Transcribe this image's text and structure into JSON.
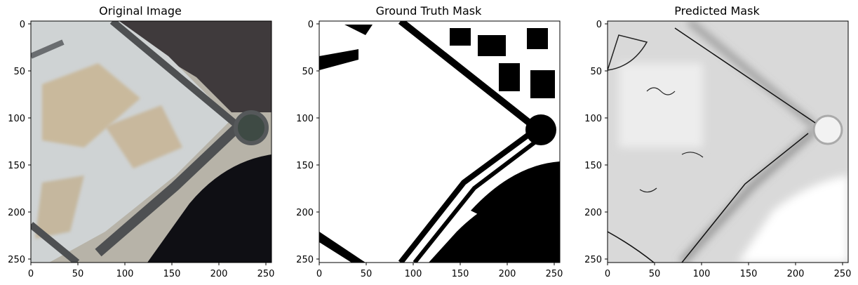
{
  "panels": [
    {
      "title": "Original Image"
    },
    {
      "title": "Ground Truth Mask"
    },
    {
      "title": "Predicted Mask"
    }
  ],
  "axis": {
    "x_ticks": [
      "0",
      "50",
      "100",
      "150",
      "200",
      "250"
    ],
    "y_ticks": [
      "0",
      "50",
      "100",
      "150",
      "200",
      "250"
    ]
  },
  "colors": {
    "lake": "#0d0d12",
    "road": "#4a4c4e",
    "sand": "#cbbfa8",
    "urban": "#3a3436",
    "mask_fg": "#ffffff",
    "mask_bg": "#000000"
  }
}
